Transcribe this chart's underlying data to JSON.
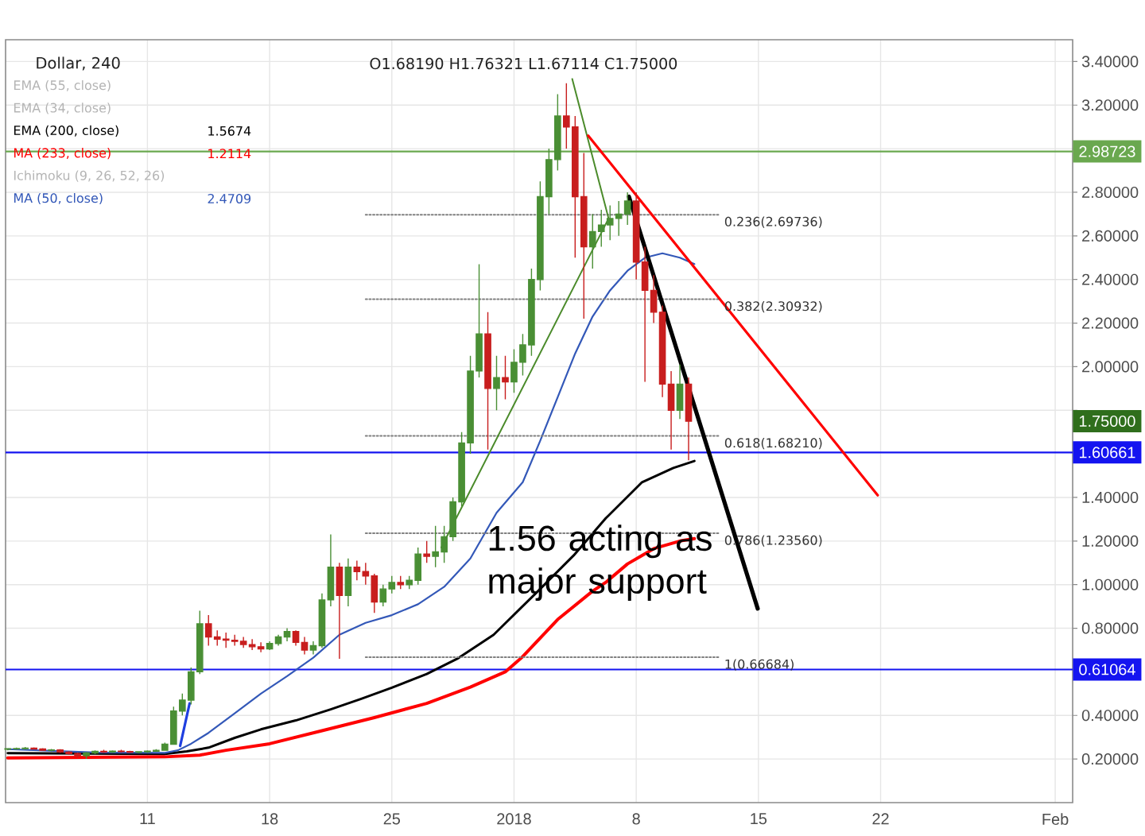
{
  "chart_data": {
    "type": "candlestick",
    "title": "Dollar, 240",
    "subtitle": "O1.68190 H1.76321 L1.67114 C1.75000",
    "x": [
      "2017-12-03T00:00",
      "2017-12-03T12:00",
      "2017-12-04T00:00",
      "2017-12-04T12:00",
      "2017-12-05T00:00",
      "2017-12-05T12:00",
      "2017-12-06T00:00",
      "2017-12-06T12:00",
      "2017-12-07T00:00",
      "2017-12-07T12:00",
      "2017-12-08T00:00",
      "2017-12-08T12:00",
      "2017-12-09T00:00",
      "2017-12-09T12:00",
      "2017-12-10T00:00",
      "2017-12-10T12:00",
      "2017-12-11T00:00",
      "2017-12-11T12:00",
      "2017-12-12T00:00",
      "2017-12-12T12:00",
      "2017-12-13T00:00",
      "2017-12-13T12:00",
      "2017-12-14T00:00",
      "2017-12-14T12:00",
      "2017-12-15T00:00",
      "2017-12-15T12:00",
      "2017-12-16T00:00",
      "2017-12-16T12:00",
      "2017-12-17T00:00",
      "2017-12-17T12:00",
      "2017-12-18T00:00",
      "2017-12-18T12:00",
      "2017-12-19T00:00",
      "2017-12-19T12:00",
      "2017-12-20T00:00",
      "2017-12-20T12:00",
      "2017-12-21T00:00",
      "2017-12-21T12:00",
      "2017-12-22T00:00",
      "2017-12-22T12:00",
      "2017-12-23T00:00",
      "2017-12-23T12:00",
      "2017-12-24T00:00",
      "2017-12-24T12:00",
      "2017-12-25T00:00",
      "2017-12-25T12:00",
      "2017-12-26T00:00",
      "2017-12-26T12:00",
      "2017-12-27T00:00",
      "2017-12-27T12:00",
      "2017-12-28T00:00",
      "2017-12-28T12:00",
      "2017-12-29T00:00",
      "2017-12-29T12:00",
      "2017-12-30T00:00",
      "2017-12-30T12:00",
      "2017-12-31T00:00",
      "2017-12-31T12:00",
      "2018-01-01T00:00",
      "2018-01-01T12:00",
      "2018-01-02T00:00",
      "2018-01-02T12:00",
      "2018-01-03T00:00",
      "2018-01-03T12:00",
      "2018-01-04T00:00",
      "2018-01-04T12:00",
      "2018-01-05T00:00",
      "2018-01-05T12:00",
      "2018-01-06T00:00",
      "2018-01-06T12:00",
      "2018-01-07T00:00",
      "2018-01-07T12:00",
      "2018-01-08T00:00",
      "2018-01-08T12:00",
      "2018-01-09T00:00",
      "2018-01-09T12:00",
      "2018-01-10T00:00",
      "2018-01-10T12:00",
      "2018-01-11T00:00"
    ],
    "ohlc": [
      [
        0.245,
        0.25,
        0.24,
        0.247
      ],
      [
        0.247,
        0.252,
        0.242,
        0.248
      ],
      [
        0.248,
        0.255,
        0.243,
        0.25
      ],
      [
        0.25,
        0.253,
        0.244,
        0.246
      ],
      [
        0.246,
        0.25,
        0.238,
        0.24
      ],
      [
        0.24,
        0.246,
        0.235,
        0.242
      ],
      [
        0.242,
        0.245,
        0.228,
        0.232
      ],
      [
        0.232,
        0.236,
        0.22,
        0.225
      ],
      [
        0.225,
        0.23,
        0.205,
        0.215
      ],
      [
        0.215,
        0.232,
        0.2,
        0.228
      ],
      [
        0.228,
        0.24,
        0.222,
        0.235
      ],
      [
        0.235,
        0.242,
        0.228,
        0.232
      ],
      [
        0.232,
        0.24,
        0.228,
        0.236
      ],
      [
        0.236,
        0.242,
        0.23,
        0.234
      ],
      [
        0.234,
        0.238,
        0.228,
        0.231
      ],
      [
        0.231,
        0.236,
        0.226,
        0.233
      ],
      [
        0.233,
        0.24,
        0.228,
        0.236
      ],
      [
        0.236,
        0.245,
        0.232,
        0.24
      ],
      [
        0.24,
        0.275,
        0.238,
        0.268
      ],
      [
        0.268,
        0.44,
        0.265,
        0.42
      ],
      [
        0.42,
        0.5,
        0.4,
        0.47
      ],
      [
        0.47,
        0.62,
        0.45,
        0.6
      ],
      [
        0.6,
        0.88,
        0.59,
        0.82
      ],
      [
        0.82,
        0.86,
        0.72,
        0.76
      ],
      [
        0.76,
        0.79,
        0.72,
        0.75
      ],
      [
        0.75,
        0.78,
        0.71,
        0.745
      ],
      [
        0.745,
        0.77,
        0.72,
        0.74
      ],
      [
        0.74,
        0.76,
        0.71,
        0.725
      ],
      [
        0.725,
        0.75,
        0.7,
        0.715
      ],
      [
        0.715,
        0.735,
        0.69,
        0.705
      ],
      [
        0.705,
        0.74,
        0.7,
        0.73
      ],
      [
        0.73,
        0.77,
        0.72,
        0.76
      ],
      [
        0.76,
        0.8,
        0.74,
        0.785
      ],
      [
        0.785,
        0.79,
        0.72,
        0.735
      ],
      [
        0.735,
        0.76,
        0.68,
        0.7
      ],
      [
        0.7,
        0.74,
        0.68,
        0.72
      ],
      [
        0.72,
        0.96,
        0.71,
        0.93
      ],
      [
        0.93,
        1.23,
        0.9,
        1.08
      ],
      [
        1.08,
        1.1,
        0.66,
        0.95
      ],
      [
        0.95,
        1.12,
        0.9,
        1.08
      ],
      [
        1.08,
        1.11,
        1.02,
        1.06
      ],
      [
        1.06,
        1.1,
        1.0,
        1.04
      ],
      [
        1.04,
        1.05,
        0.87,
        0.92
      ],
      [
        0.92,
        1.0,
        0.9,
        0.98
      ],
      [
        0.98,
        1.04,
        0.96,
        1.01
      ],
      [
        1.01,
        1.04,
        0.98,
        1.0
      ],
      [
        1.0,
        1.04,
        0.98,
        1.02
      ],
      [
        1.02,
        1.17,
        1.0,
        1.14
      ],
      [
        1.14,
        1.2,
        1.1,
        1.13
      ],
      [
        1.13,
        1.27,
        1.08,
        1.15
      ],
      [
        1.15,
        1.27,
        1.1,
        1.22
      ],
      [
        1.22,
        1.4,
        1.2,
        1.38
      ],
      [
        1.38,
        1.7,
        1.36,
        1.65
      ],
      [
        1.65,
        2.05,
        1.6,
        1.98
      ],
      [
        1.98,
        2.47,
        1.95,
        2.15
      ],
      [
        2.15,
        2.25,
        1.62,
        1.9
      ],
      [
        1.9,
        2.05,
        1.8,
        1.95
      ],
      [
        1.95,
        2.05,
        1.85,
        1.93
      ],
      [
        1.93,
        2.08,
        1.88,
        2.02
      ],
      [
        2.02,
        2.15,
        1.96,
        2.1
      ],
      [
        2.1,
        2.45,
        2.05,
        2.4
      ],
      [
        2.4,
        2.85,
        2.35,
        2.78
      ],
      [
        2.78,
        3.0,
        2.7,
        2.95
      ],
      [
        2.95,
        3.25,
        2.9,
        3.15
      ],
      [
        3.15,
        3.3,
        3.0,
        3.1
      ],
      [
        3.1,
        3.15,
        2.5,
        2.78
      ],
      [
        2.78,
        2.98,
        2.22,
        2.55
      ],
      [
        2.55,
        2.7,
        2.45,
        2.62
      ],
      [
        2.62,
        2.72,
        2.55,
        2.65
      ],
      [
        2.65,
        2.74,
        2.58,
        2.68
      ],
      [
        2.68,
        2.76,
        2.6,
        2.7
      ],
      [
        2.7,
        2.8,
        2.65,
        2.76
      ],
      [
        2.76,
        2.8,
        2.4,
        2.48
      ],
      [
        2.48,
        2.55,
        1.93,
        2.35
      ],
      [
        2.35,
        2.42,
        2.2,
        2.25
      ],
      [
        2.25,
        2.28,
        1.86,
        1.92
      ],
      [
        1.92,
        1.98,
        1.62,
        1.8
      ],
      [
        1.8,
        2.01,
        1.76,
        1.92
      ],
      [
        1.92,
        1.95,
        1.57,
        1.75
      ]
    ],
    "colors": [
      "#4a8f35",
      "#4a8f35",
      "#4a8f35",
      "#c81e1e",
      "#c81e1e",
      "#4a8f35",
      "#c81e1e",
      "#c81e1e",
      "#c81e1e",
      "#4a8f35",
      "#4a8f35",
      "#c81e1e",
      "#4a8f35",
      "#c81e1e",
      "#c81e1e",
      "#4a8f35",
      "#4a8f35",
      "#4a8f35",
      "#4a8f35",
      "#4a8f35",
      "#4a8f35",
      "#4a8f35",
      "#4a8f35",
      "#c81e1e",
      "#c81e1e",
      "#c81e1e",
      "#c81e1e",
      "#c81e1e",
      "#c81e1e",
      "#c81e1e",
      "#4a8f35",
      "#4a8f35",
      "#4a8f35",
      "#c81e1e",
      "#c81e1e",
      "#4a8f35",
      "#4a8f35",
      "#4a8f35",
      "#c81e1e",
      "#4a8f35",
      "#c81e1e",
      "#c81e1e",
      "#c81e1e",
      "#4a8f35",
      "#4a8f35",
      "#c81e1e",
      "#4a8f35",
      "#4a8f35",
      "#c81e1e",
      "#4a8f35",
      "#4a8f35",
      "#4a8f35",
      "#4a8f35",
      "#4a8f35",
      "#4a8f35",
      "#c81e1e",
      "#4a8f35",
      "#c81e1e",
      "#4a8f35",
      "#4a8f35",
      "#4a8f35",
      "#4a8f35",
      "#4a8f35",
      "#4a8f35",
      "#c81e1e",
      "#c81e1e",
      "#c81e1e",
      "#4a8f35",
      "#4a8f35",
      "#4a8f35",
      "#4a8f35",
      "#4a8f35",
      "#c81e1e",
      "#c81e1e",
      "#c81e1e",
      "#c81e1e",
      "#c81e1e",
      "#4a8f35",
      "#c81e1e"
    ],
    "series": [
      {
        "name": "EMA (200, close)",
        "type": "line",
        "color": "#000000",
        "x": [
          "2017-12-03T00:00",
          "2017-12-12T00:00",
          "2017-12-13T06:00",
          "2017-12-14T12:00",
          "2017-12-16T00:00",
          "2017-12-17T12:00",
          "2017-12-19T12:00",
          "2017-12-21T12:00",
          "2017-12-23T06:00",
          "2017-12-25T00:00",
          "2017-12-27T00:00",
          "2017-12-28T18:00",
          "2017-12-30T20:00",
          "2018-01-02T07:00",
          "2018-01-04T10:00",
          "2018-01-06T06:00",
          "2018-01-08T08:00",
          "2018-01-10T03:00",
          "2018-01-11T08:00"
        ],
        "values": [
          0.227,
          0.223,
          0.235,
          0.252,
          0.297,
          0.336,
          0.377,
          0.428,
          0.476,
          0.527,
          0.59,
          0.66,
          0.77,
          0.964,
          1.134,
          1.304,
          1.47,
          1.535,
          1.567
        ]
      },
      {
        "name": "MA (233, close)",
        "type": "line",
        "color": "#ff0000",
        "x": [
          "2017-12-03T00:00",
          "2017-12-12T00:00",
          "2017-12-14T00:00",
          "2017-12-15T12:00",
          "2017-12-18T00:00",
          "2017-12-21T00:00",
          "2017-12-24T00:00",
          "2017-12-27T00:00",
          "2017-12-29T12:00",
          "2017-12-31T12:00",
          "2018-01-01T12:00",
          "2018-01-03T12:00",
          "2018-01-05T12:00",
          "2018-01-06T06:00",
          "2018-01-07T12:00",
          "2018-01-08T08:00",
          "2018-01-09T00:00",
          "2018-01-10T12:00",
          "2018-01-11T08:00"
        ],
        "values": [
          0.205,
          0.21,
          0.218,
          0.24,
          0.27,
          0.33,
          0.39,
          0.455,
          0.53,
          0.6,
          0.67,
          0.84,
          0.97,
          1.01,
          1.095,
          1.134,
          1.165,
          1.2,
          1.211
        ]
      },
      {
        "name": "MA (50, close)",
        "type": "line",
        "color": "#3358b8",
        "x": [
          "2017-12-03T00:00",
          "2017-12-08T00:00",
          "2017-12-12T00:00",
          "2017-12-12T18:00",
          "2017-12-13T12:00",
          "2017-12-14T12:00",
          "2017-12-16T00:00",
          "2017-12-17T12:00",
          "2017-12-19T00:00",
          "2017-12-20T12:00",
          "2017-12-22T00:00",
          "2017-12-23T12:00",
          "2017-12-25T00:00",
          "2017-12-26T12:00",
          "2017-12-28T00:00",
          "2017-12-29T12:00",
          "2017-12-31T00:00",
          "2018-01-01T12:00",
          "2018-01-02T12:00",
          "2018-01-03T12:00",
          "2018-01-04T12:00",
          "2018-01-05T12:00",
          "2018-01-06T12:00",
          "2018-01-07T12:00",
          "2018-01-08T12:00",
          "2018-01-09T12:00",
          "2018-01-10T12:00",
          "2018-01-11T08:00"
        ],
        "values": [
          0.245,
          0.23,
          0.228,
          0.24,
          0.27,
          0.32,
          0.41,
          0.5,
          0.58,
          0.665,
          0.77,
          0.825,
          0.86,
          0.91,
          0.99,
          1.12,
          1.33,
          1.47,
          1.66,
          1.86,
          2.06,
          2.23,
          2.35,
          2.44,
          2.5,
          2.52,
          2.5,
          2.471
        ]
      },
      {
        "name": "0.236(2.69736)",
        "type": "line",
        "color": "#808080",
        "line_style": "dotted",
        "x": [
          "2017-12-23T12:00",
          "2018-01-12T18:00"
        ],
        "values": [
          2.69736,
          2.69736
        ]
      },
      {
        "name": "0.382(2.30932)",
        "type": "line",
        "color": "#808080",
        "line_style": "dotted",
        "x": [
          "2017-12-23T12:00",
          "2018-01-12T18:00"
        ],
        "values": [
          2.30932,
          2.30932
        ]
      },
      {
        "name": "0.618(1.68210)",
        "type": "line",
        "color": "#808080",
        "line_style": "dotted",
        "x": [
          "2017-12-23T12:00",
          "2018-01-12T18:00"
        ],
        "values": [
          1.6821,
          1.6821
        ]
      },
      {
        "name": "0.786(1.23560)",
        "type": "line",
        "color": "#808080",
        "line_style": "dotted",
        "x": [
          "2017-12-23T12:00",
          "2018-01-12T18:00"
        ],
        "values": [
          1.2356,
          1.2356
        ]
      },
      {
        "name": "1(0.66684)",
        "type": "line",
        "color": "#808080",
        "line_style": "dotted",
        "x": [
          "2017-12-23T12:00",
          "2018-01-12T18:00"
        ],
        "values": [
          0.66684,
          0.66684
        ]
      },
      {
        "type": "line",
        "color": "#4b8b2b",
        "x": [
          "2017-12-27T20:00",
          "2018-01-06T10:00"
        ],
        "values": [
          1.17,
          2.68
        ]
      },
      {
        "type": "line",
        "color": "#4b8b2b",
        "x": [
          "2018-01-04T08:00",
          "2018-01-06T10:00"
        ],
        "values": [
          3.32,
          2.68
        ]
      },
      {
        "type": "line",
        "color": "#ff0000",
        "x": [
          "2018-01-05T06:00",
          "2018-01-21T20:00"
        ],
        "values": [
          3.06,
          1.41
        ]
      },
      {
        "type": "line",
        "color": "#000000",
        "x": [
          "2018-01-07T14:00",
          "2018-01-14T23:00"
        ],
        "values": [
          2.78,
          0.89
        ]
      },
      {
        "type": "line",
        "color": "#1f3fe0",
        "x": [
          "2017-12-12T21:00",
          "2017-12-13T10:00"
        ],
        "values": [
          0.26,
          0.455
        ]
      }
    ],
    "ref_lines": [
      {
        "axis": "y",
        "value": 2.98723,
        "label": "2.98723",
        "color": "#6aa84f"
      },
      {
        "axis": "y",
        "value": 1.60661,
        "label": "1.60661",
        "color": "#1414f0"
      },
      {
        "axis": "y",
        "value": 0.61064,
        "label": "0.61064",
        "color": "#1414f0"
      }
    ],
    "annotations": [
      "EMA (55, close)",
      "EMA (34, close)",
      "1.5674",
      "1.2114",
      "Ichimoku (9, 26, 52, 26)",
      "2.4709",
      "1.56 acting as major support",
      {
        "text": "1.75000",
        "y": 1.75
      }
    ],
    "xlim": [
      "2017-12-02T21:00",
      "2018-02-02"
    ],
    "ylim": [
      0,
      3.5
    ],
    "xticks": [
      {
        "value": "2017-12-11",
        "label": "11"
      },
      {
        "value": "2017-12-18",
        "label": "18"
      },
      {
        "value": "2017-12-25",
        "label": "25"
      },
      {
        "value": "2018-01-01",
        "label": "2018"
      },
      {
        "value": "2018-01-08",
        "label": "8"
      },
      {
        "value": "2018-01-15",
        "label": "15"
      },
      {
        "value": "2018-01-22",
        "label": "22"
      },
      {
        "value": "2018-02-01",
        "label": "Feb"
      }
    ],
    "yticks": [
      {
        "value": 0.2,
        "label": "0.20000"
      },
      {
        "value": 0.4,
        "label": "0.40000"
      },
      {
        "value": 0.8,
        "label": "0.80000"
      },
      {
        "value": 1.0,
        "label": "1.00000"
      },
      {
        "value": 1.2,
        "label": "1.20000"
      },
      {
        "value": 1.4,
        "label": "1.40000"
      },
      {
        "value": 1.8,
        "label": null
      },
      {
        "value": 2.0,
        "label": "2.00000"
      },
      {
        "value": 2.2,
        "label": "2.20000"
      },
      {
        "value": 2.4,
        "label": "2.40000"
      },
      {
        "value": 2.6,
        "label": "2.60000"
      },
      {
        "value": 2.8,
        "label": "2.80000"
      },
      {
        "value": 3.0,
        "label": null
      },
      {
        "value": 3.2,
        "label": "3.20000"
      },
      {
        "value": 3.4,
        "label": "3.40000"
      }
    ],
    "grid": true,
    "legend": "top left"
  }
}
